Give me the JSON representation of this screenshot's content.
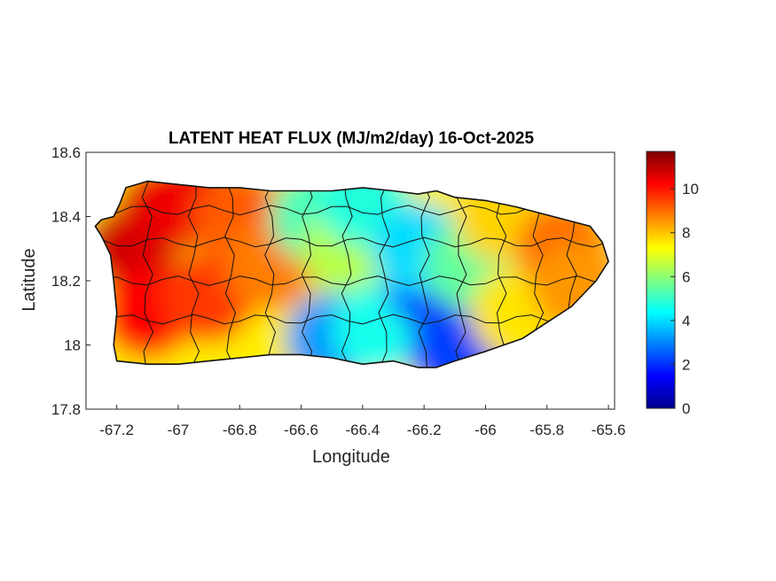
{
  "chart_data": {
    "type": "heatmap",
    "title": "LATENT HEAT FLUX (MJ/m2/day) 16-Oct-2025",
    "xlabel": "Longitude",
    "ylabel": "Latitude",
    "xlim": [
      -67.3,
      -65.58
    ],
    "ylim": [
      17.8,
      18.6
    ],
    "x_ticks": [
      -67.2,
      -67,
      -66.8,
      -66.6,
      -66.4,
      -66.2,
      -66,
      -65.8,
      -65.6
    ],
    "x_tick_labels": [
      "-67.2",
      "-67",
      "-66.8",
      "-66.6",
      "-66.4",
      "-66.2",
      "-66",
      "-65.8",
      "-65.6"
    ],
    "y_ticks": [
      17.8,
      18,
      18.2,
      18.4,
      18.6
    ],
    "y_tick_labels": [
      "17.8",
      "18",
      "18.2",
      "18.4",
      "18.6"
    ],
    "colorbar": {
      "colormap": "jet",
      "clim": [
        0,
        11.7
      ],
      "ticks": [
        0,
        2,
        4,
        6,
        8,
        10
      ],
      "tick_labels": [
        "0",
        "2",
        "4",
        "6",
        "8",
        "10"
      ]
    },
    "grid": false,
    "island_outline": [
      [
        -67.27,
        18.37
      ],
      [
        -67.25,
        18.39
      ],
      [
        -67.21,
        18.4
      ],
      [
        -67.19,
        18.44
      ],
      [
        -67.17,
        18.49
      ],
      [
        -67.1,
        18.51
      ],
      [
        -67.0,
        18.5
      ],
      [
        -66.9,
        18.49
      ],
      [
        -66.8,
        18.49
      ],
      [
        -66.7,
        18.48
      ],
      [
        -66.6,
        18.48
      ],
      [
        -66.5,
        18.48
      ],
      [
        -66.4,
        18.49
      ],
      [
        -66.3,
        18.48
      ],
      [
        -66.22,
        18.47
      ],
      [
        -66.16,
        18.48
      ],
      [
        -66.1,
        18.46
      ],
      [
        -66.0,
        18.45
      ],
      [
        -65.9,
        18.43
      ],
      [
        -65.82,
        18.41
      ],
      [
        -65.74,
        18.39
      ],
      [
        -65.66,
        18.37
      ],
      [
        -65.62,
        18.32
      ],
      [
        -65.6,
        18.26
      ],
      [
        -65.64,
        18.2
      ],
      [
        -65.72,
        18.12
      ],
      [
        -65.8,
        18.07
      ],
      [
        -65.88,
        18.02
      ],
      [
        -66.0,
        17.98
      ],
      [
        -66.1,
        17.95
      ],
      [
        -66.16,
        17.93
      ],
      [
        -66.22,
        17.93
      ],
      [
        -66.3,
        17.95
      ],
      [
        -66.4,
        17.94
      ],
      [
        -66.5,
        17.96
      ],
      [
        -66.6,
        17.97
      ],
      [
        -66.7,
        17.97
      ],
      [
        -66.8,
        17.96
      ],
      [
        -66.9,
        17.95
      ],
      [
        -67.0,
        17.94
      ],
      [
        -67.1,
        17.94
      ],
      [
        -67.2,
        17.95
      ],
      [
        -67.21,
        18.0
      ],
      [
        -67.2,
        18.1
      ],
      [
        -67.21,
        18.2
      ],
      [
        -67.22,
        18.28
      ],
      [
        -67.25,
        18.34
      ]
    ],
    "values_by_region": [
      {
        "lon": -67.15,
        "lat": 18.3,
        "value": 10.8
      },
      {
        "lon": -67.05,
        "lat": 18.42,
        "value": 10.6
      },
      {
        "lon": -66.95,
        "lat": 18.45,
        "value": 10.4
      },
      {
        "lon": -67.1,
        "lat": 18.1,
        "value": 10.2
      },
      {
        "lon": -66.9,
        "lat": 18.15,
        "value": 9.6
      },
      {
        "lon": -66.8,
        "lat": 18.4,
        "value": 9.2
      },
      {
        "lon": -66.7,
        "lat": 18.25,
        "value": 8.8
      },
      {
        "lon": -66.55,
        "lat": 18.4,
        "value": 5.2
      },
      {
        "lon": -66.45,
        "lat": 18.3,
        "value": 6.5
      },
      {
        "lon": -66.4,
        "lat": 18.45,
        "value": 4.8
      },
      {
        "lon": -66.5,
        "lat": 18.02,
        "value": 3.2
      },
      {
        "lon": -66.35,
        "lat": 18.05,
        "value": 4.6
      },
      {
        "lon": -66.18,
        "lat": 18.2,
        "value": 1.5
      },
      {
        "lon": -66.22,
        "lat": 18.3,
        "value": 4.0
      },
      {
        "lon": -66.1,
        "lat": 17.98,
        "value": 2.2
      },
      {
        "lon": -66.05,
        "lat": 18.25,
        "value": 5.5
      },
      {
        "lon": -65.95,
        "lat": 18.4,
        "value": 7.8
      },
      {
        "lon": -65.9,
        "lat": 18.1,
        "value": 7.6
      },
      {
        "lon": -65.75,
        "lat": 18.3,
        "value": 9.0
      },
      {
        "lon": -65.7,
        "lat": 18.18,
        "value": 8.5
      }
    ]
  }
}
